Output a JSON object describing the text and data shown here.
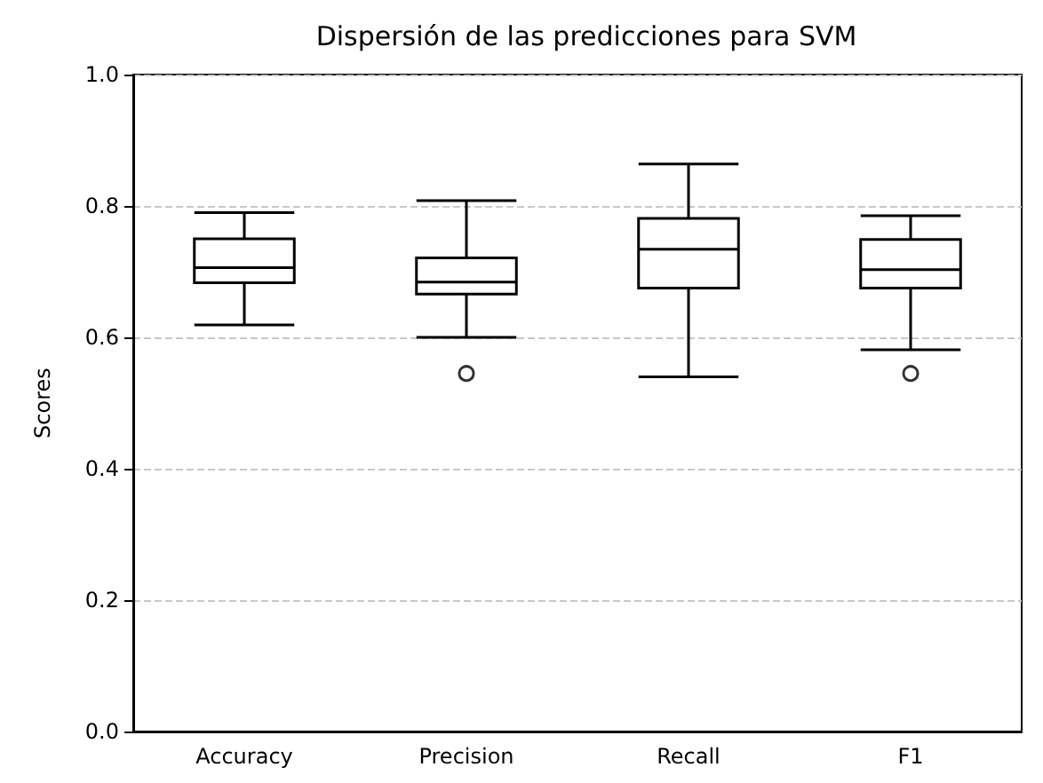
{
  "chart_data": {
    "type": "box",
    "title": "Dispersión de las predicciones para SVM",
    "ylabel": "Scores",
    "categories": [
      "Accuracy",
      "Precision",
      "Recall",
      "F1"
    ],
    "boxes": [
      {
        "low": 0.619,
        "q1": 0.683,
        "median": 0.706,
        "q3": 0.75,
        "high": 0.79
      },
      {
        "low": 0.6,
        "q1": 0.666,
        "median": 0.684,
        "q3": 0.721,
        "high": 0.808,
        "outliers": [
          0.545
        ]
      },
      {
        "low": 0.54,
        "q1": 0.675,
        "median": 0.734,
        "q3": 0.781,
        "high": 0.864
      },
      {
        "low": 0.581,
        "q1": 0.675,
        "median": 0.703,
        "q3": 0.749,
        "high": 0.785,
        "outliers": [
          0.545
        ]
      }
    ],
    "color": "#000000",
    "ylim": [
      0,
      1
    ],
    "yticks": [
      {
        "value": 0,
        "label": "0.0"
      },
      0.2,
      0.4,
      0.6,
      0.8,
      {
        "value": 1,
        "label": "1.0"
      }
    ],
    "grid": "y",
    "marker": "circle"
  }
}
